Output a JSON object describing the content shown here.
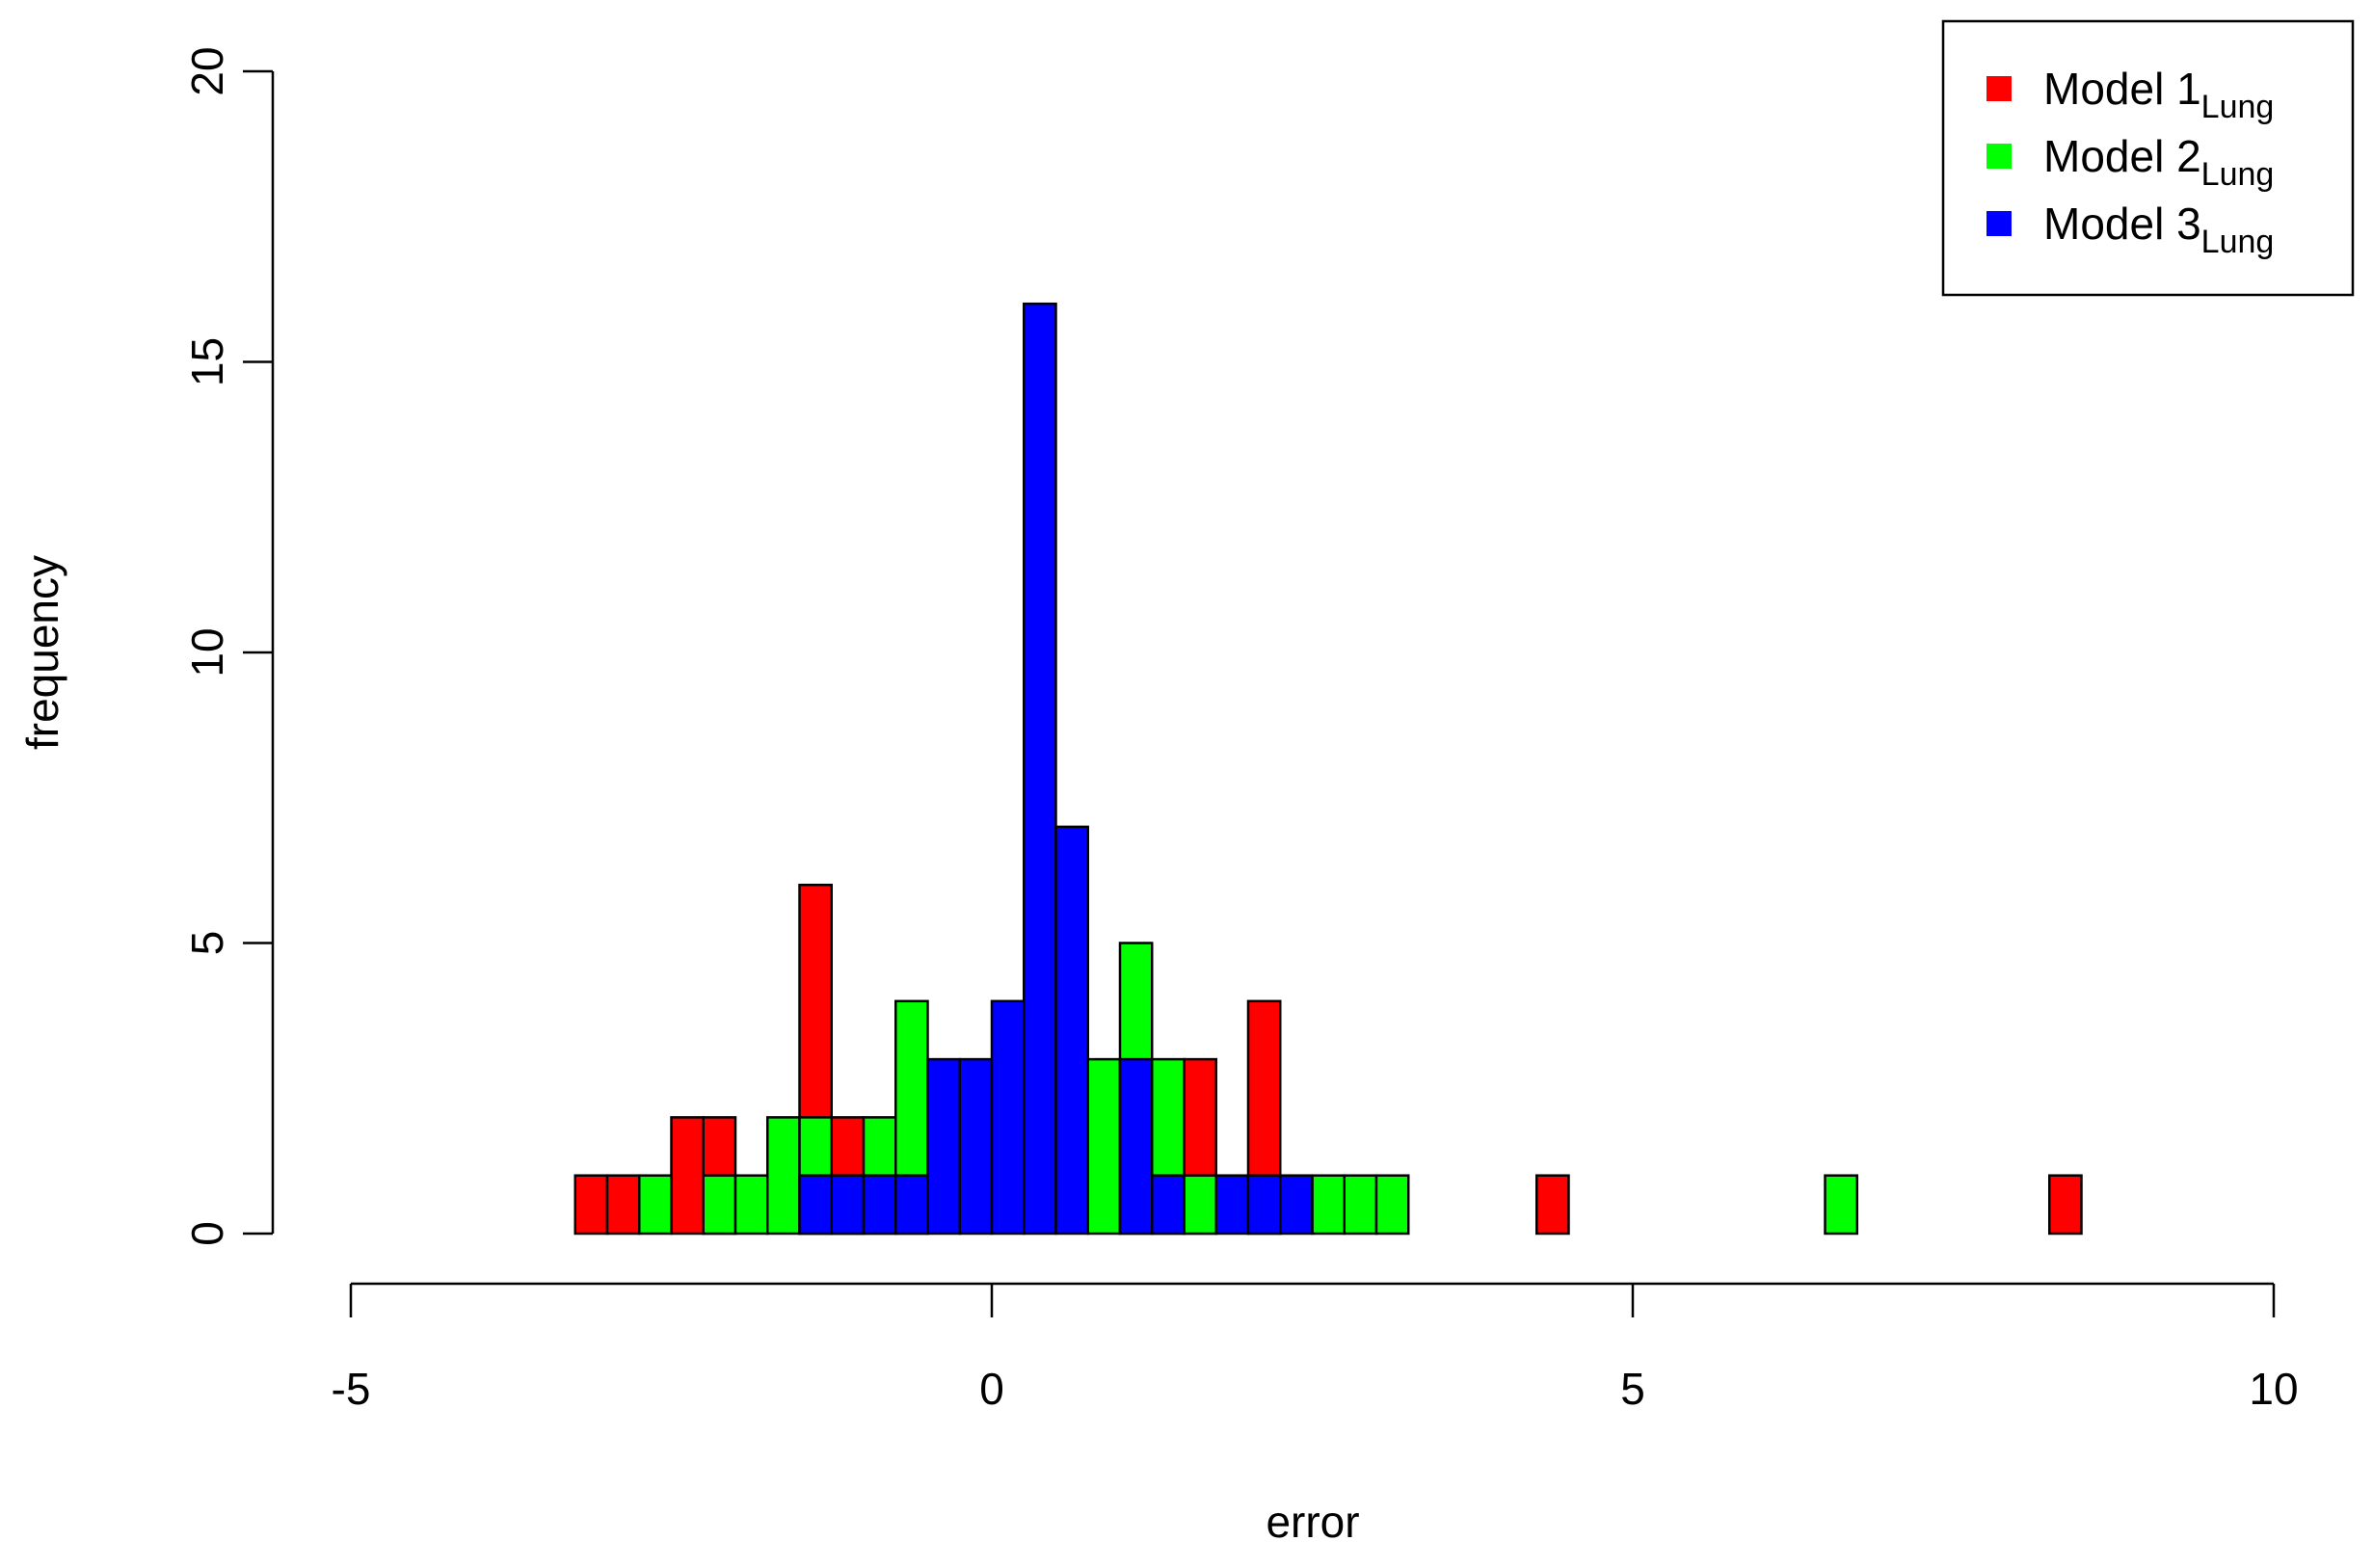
{
  "chart_data": {
    "type": "histogram",
    "xlabel": "error",
    "ylabel": "frequency",
    "bins": [
      -5,
      -4.75,
      -4.5,
      -4.25,
      -4,
      -3.75,
      -3.5,
      -3.25,
      -3,
      -2.75,
      -2.5,
      -2.25,
      -2,
      -1.75,
      -1.5,
      -1.25,
      -1,
      -0.75,
      -0.5,
      -0.25,
      0,
      0.25,
      0.5,
      0.75,
      1,
      1.25,
      1.5,
      1.75,
      2,
      2.25,
      2.5,
      2.75,
      3,
      3.25,
      3.5,
      3.75,
      4,
      4.25,
      4.5,
      4.75,
      5,
      5.25,
      5.5,
      5.75,
      6,
      6.25,
      6.5,
      6.75,
      7,
      7.25,
      7.5,
      7.75,
      8,
      8.25,
      8.5,
      8.75,
      9,
      9.25,
      9.5,
      9.75,
      10
    ],
    "series": [
      {
        "name": "Model 1",
        "subscript": "Lung",
        "color": "#ff0000",
        "values": [
          0,
          0,
          0,
          0,
          0,
          0,
          0,
          1,
          1,
          0,
          2,
          2,
          0,
          0,
          6,
          2,
          0,
          0,
          0,
          0,
          0,
          0,
          0,
          0,
          0,
          0,
          3,
          0,
          4,
          0,
          0,
          0,
          0,
          0,
          0,
          0,
          0,
          1,
          0,
          0,
          0,
          0,
          0,
          0,
          0,
          0,
          0,
          0,
          0,
          0,
          0,
          0,
          0,
          1,
          0,
          0,
          0,
          0,
          0,
          0
        ]
      },
      {
        "name": "Model 2",
        "subscript": "Lung",
        "color": "#00ff00",
        "values": [
          0,
          0,
          0,
          0,
          0,
          0,
          0,
          0,
          0,
          1,
          0,
          1,
          1,
          2,
          2,
          1,
          2,
          4,
          0,
          0,
          0,
          0,
          0,
          3,
          5,
          3,
          1,
          0,
          0,
          0,
          1,
          1,
          1,
          0,
          0,
          0,
          0,
          0,
          0,
          0,
          0,
          0,
          0,
          0,
          0,
          0,
          1,
          0,
          0,
          0,
          0,
          0,
          0,
          0,
          0,
          0,
          0,
          0,
          0,
          0
        ]
      },
      {
        "name": "Model 3",
        "subscript": "Lung",
        "color": "#0000ff",
        "values": [
          0,
          0,
          0,
          0,
          0,
          0,
          0,
          0,
          0,
          0,
          0,
          0,
          0,
          0,
          1,
          1,
          1,
          1,
          3,
          3,
          4,
          16,
          7,
          0,
          3,
          1,
          0,
          1,
          1,
          1,
          0,
          0,
          0,
          0,
          0,
          0,
          0,
          0,
          0,
          0,
          0,
          0,
          0,
          0,
          0,
          0,
          0,
          0,
          0,
          0,
          0,
          0,
          0,
          0,
          0,
          0,
          0,
          0,
          0,
          0
        ]
      }
    ],
    "xlim": [
      -5,
      10
    ],
    "xticks": [
      -5,
      0,
      5,
      10
    ],
    "ylim": [
      0,
      20
    ],
    "yticks": [
      0,
      5,
      10,
      15,
      20
    ],
    "legend": "top-right"
  }
}
